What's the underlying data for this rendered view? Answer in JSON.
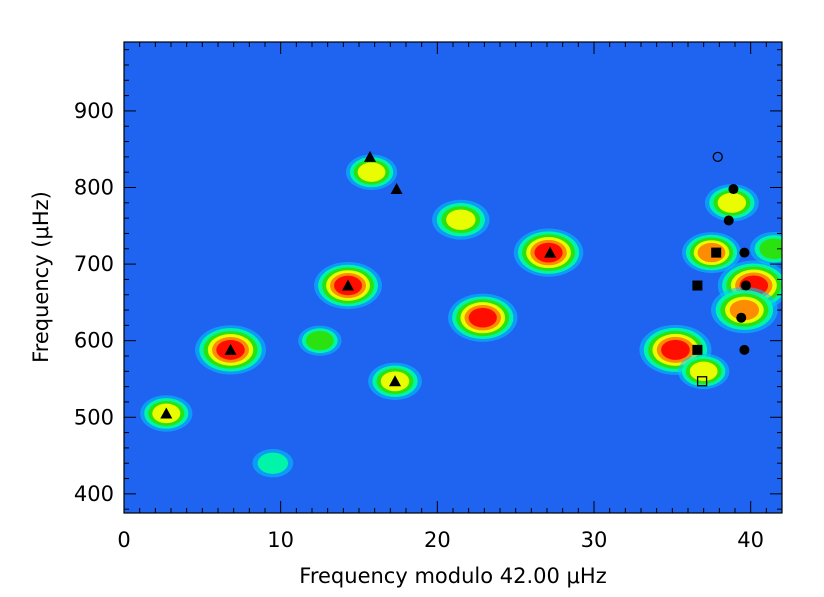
{
  "chart_data": {
    "type": "heatmap",
    "title": "",
    "xlabel": "Frequency modulo 42.00 μHz",
    "ylabel": "Frequency (μHz)",
    "xlim": [
      0,
      42
    ],
    "ylim": [
      375,
      990
    ],
    "x_ticks": [
      0,
      10,
      20,
      30,
      40
    ],
    "y_ticks": [
      400,
      500,
      600,
      700,
      800,
      900
    ],
    "x_tick_labels": [
      "0",
      "10",
      "20",
      "30",
      "40"
    ],
    "y_tick_labels": [
      "400",
      "500",
      "600",
      "700",
      "800",
      "900"
    ],
    "colormap": [
      "#0000ff",
      "#00c8ff",
      "#00ffa0",
      "#30e000",
      "#ffff00",
      "#ff8000",
      "#ff0000"
    ],
    "background_color": "#1e64f0",
    "hot_spots": [
      {
        "x": 6.8,
        "y": 588,
        "peak": 0.98
      },
      {
        "x": 14.3,
        "y": 672,
        "peak": 0.92
      },
      {
        "x": 22.9,
        "y": 630,
        "peak": 0.95
      },
      {
        "x": 27.1,
        "y": 715,
        "peak": 0.95
      },
      {
        "x": 35.2,
        "y": 588,
        "peak": 1.0
      },
      {
        "x": 40.2,
        "y": 672,
        "peak": 1.0
      },
      {
        "x": 39.6,
        "y": 640,
        "peak": 0.9
      },
      {
        "x": 21.5,
        "y": 758,
        "peak": 0.72
      },
      {
        "x": 17.3,
        "y": 547,
        "peak": 0.65
      },
      {
        "x": 2.7,
        "y": 505,
        "peak": 0.62
      },
      {
        "x": 15.8,
        "y": 820,
        "peak": 0.6
      },
      {
        "x": 37.5,
        "y": 715,
        "peak": 0.75
      },
      {
        "x": 38.8,
        "y": 780,
        "peak": 0.65
      },
      {
        "x": 37.0,
        "y": 560,
        "peak": 0.6
      },
      {
        "x": 41.5,
        "y": 720,
        "peak": 0.55
      },
      {
        "x": 12.5,
        "y": 600,
        "peak": 0.45
      },
      {
        "x": 9.5,
        "y": 440,
        "peak": 0.4
      }
    ],
    "series": [
      {
        "marker": "filled-triangle",
        "color": "#000000",
        "x": [
          2.7,
          6.8,
          14.3,
          15.7,
          17.4,
          17.3,
          27.2
        ],
        "y": [
          505,
          588,
          672,
          840,
          798,
          547,
          715
        ]
      },
      {
        "marker": "filled-circle",
        "color": "#000000",
        "x": [
          38.9,
          38.6,
          39.6,
          39.7,
          39.4,
          39.6
        ],
        "y": [
          798,
          757,
          715,
          672,
          630,
          588
        ]
      },
      {
        "marker": "open-circle",
        "color": "#000000",
        "x": [
          37.9
        ],
        "y": [
          840
        ]
      },
      {
        "marker": "filled-square",
        "color": "#000000",
        "x": [
          37.8,
          36.6,
          36.6
        ],
        "y": [
          715,
          672,
          588
        ]
      },
      {
        "marker": "open-square",
        "color": "#000000",
        "x": [
          36.9
        ],
        "y": [
          547
        ]
      }
    ]
  }
}
